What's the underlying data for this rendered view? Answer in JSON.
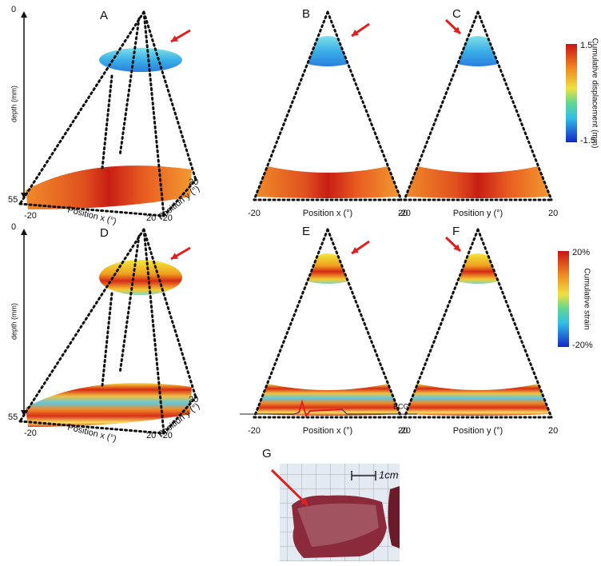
{
  "figure": {
    "top_row": {
      "depth_axis": {
        "label": "depth (mm)",
        "ticks": [
          0,
          55
        ]
      },
      "colorbar": {
        "title": "Cumulative displacement (mm)",
        "ticks": [
          1.5,
          -1.5
        ]
      },
      "panels": [
        {
          "letter": "A",
          "x_label": "Position x (°)",
          "x_ticks": [
            -20,
            20
          ],
          "y_label": "Position y (°)",
          "y_ticks": [
            -20,
            20
          ]
        },
        {
          "letter": "B",
          "x_label": "Position x (°)",
          "x_ticks": [
            -20,
            20
          ]
        },
        {
          "letter": "C",
          "x_label": "Position y (°)",
          "x_ticks": [
            -20,
            20
          ]
        }
      ]
    },
    "bottom_row": {
      "depth_axis": {
        "label": "depth (mm)",
        "ticks": [
          0,
          55
        ]
      },
      "colorbar": {
        "title": "Cumulative strain",
        "ticks": [
          "20%",
          "-20%"
        ]
      },
      "panels": [
        {
          "letter": "D",
          "x_label": "Position x (°)",
          "x_ticks": [
            -20,
            20
          ],
          "y_label": "Position y (°)",
          "y_ticks": [
            -20,
            20
          ]
        },
        {
          "letter": "E",
          "x_label": "Position x (°)",
          "x_ticks": [
            -20,
            20
          ]
        },
        {
          "letter": "F",
          "x_label": "Position y (°)",
          "x_ticks": [
            -20,
            20
          ]
        }
      ]
    },
    "ecg_label": "ECG",
    "photo": {
      "letter": "G",
      "scale_label": "1cm"
    }
  }
}
